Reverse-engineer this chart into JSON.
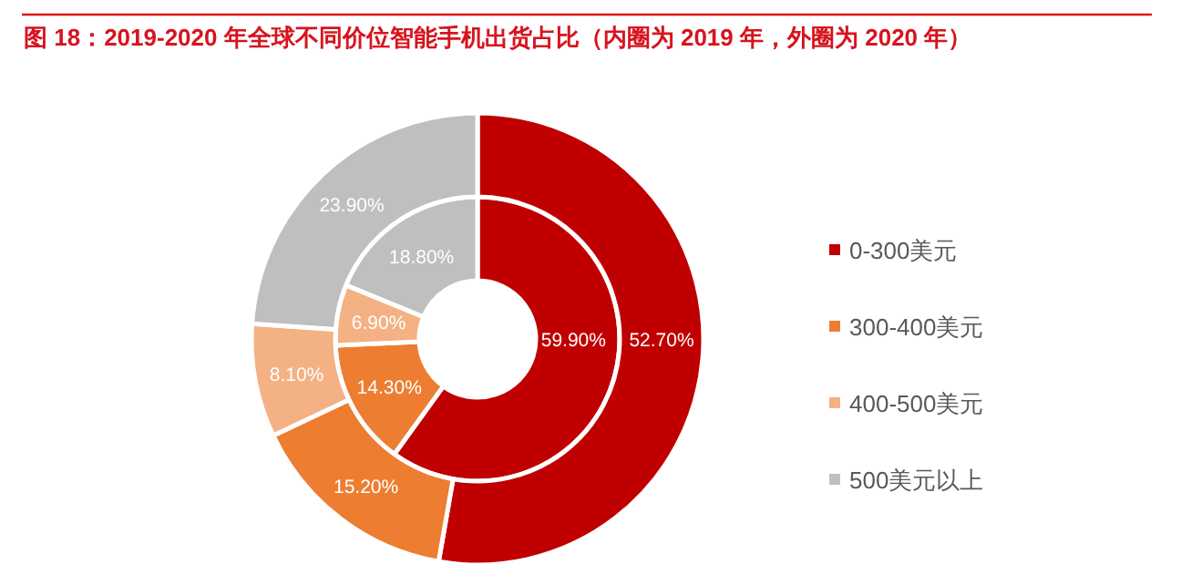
{
  "chart_data": {
    "type": "donut",
    "title": "图 18：2019-2020 年全球不同价位智能手机出货占比（内圈为 2019 年，外圈为 2020 年）",
    "categories": [
      "0-300美元",
      "300-400美元",
      "400-500美元",
      "500美元以上"
    ],
    "colors": [
      "#c00000",
      "#ed7d31",
      "#f4b183",
      "#bfbfbf"
    ],
    "series": [
      {
        "values": [
          59.9,
          14.3,
          6.9,
          18.8
        ],
        "value_labels": [
          "59.90%",
          "14.30%",
          "6.90%",
          "18.80%"
        ]
      },
      {
        "values": [
          52.7,
          15.2,
          8.1,
          23.9
        ],
        "value_labels": [
          "52.70%",
          "15.20%",
          "8.10%",
          "23.90%"
        ]
      }
    ],
    "legend": "right"
  }
}
